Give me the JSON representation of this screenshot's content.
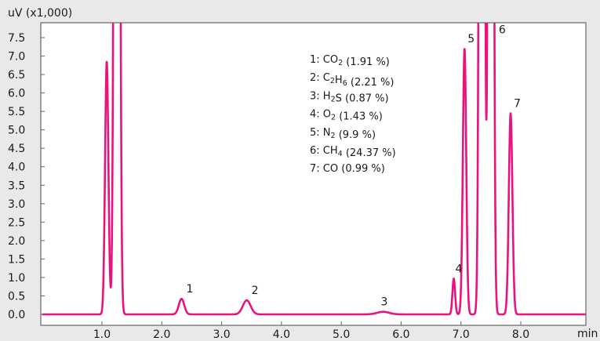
{
  "chart_data": {
    "type": "line",
    "title": "",
    "ylabel": "uV (x1,000)",
    "xlabel": "min",
    "xlim": [
      0.0,
      9.3
    ],
    "ylim": [
      -0.15,
      8.2
    ],
    "x_ticks": [
      1.0,
      2.0,
      3.0,
      4.0,
      5.0,
      6.0,
      7.0,
      8.0
    ],
    "x_tick_labels": [
      "1.0",
      "2.0",
      "3.0",
      "4.0",
      "5.0",
      "6.0",
      "7.0",
      "8.0"
    ],
    "y_ticks": [
      0.0,
      0.5,
      1.0,
      1.5,
      2.0,
      2.5,
      3.0,
      3.5,
      4.0,
      4.5,
      5.0,
      5.5,
      6.0,
      6.5,
      7.0,
      7.5
    ],
    "y_tick_labels": [
      "0.0",
      "0.5",
      "1.0",
      "1.5",
      "2.0",
      "2.5",
      "3.0",
      "3.5",
      "4.0",
      "4.5",
      "5.0",
      "5.5",
      "6.0",
      "6.5",
      "7.0",
      "7.5"
    ],
    "grid": false,
    "line_color": "#e8137f",
    "baseline": 0.0,
    "series": [
      {
        "peaks": [
          {
            "x": 1.08,
            "height": 6.85,
            "width": 0.028,
            "label": ""
          },
          {
            "x": 1.25,
            "height": 60.0,
            "width": 0.032,
            "label": ""
          },
          {
            "x": 2.33,
            "height": 0.42,
            "width": 0.045,
            "label": "1"
          },
          {
            "x": 3.42,
            "height": 0.38,
            "width": 0.065,
            "label": "2"
          },
          {
            "x": 5.7,
            "height": 0.07,
            "width": 0.1,
            "label": "3"
          },
          {
            "x": 6.88,
            "height": 0.97,
            "width": 0.022,
            "label": "4"
          },
          {
            "x": 7.06,
            "height": 7.2,
            "width": 0.028,
            "label": "5"
          },
          {
            "x": 7.35,
            "height": 60.0,
            "width": 0.03,
            "label": ""
          },
          {
            "x": 7.5,
            "height": 60.0,
            "width": 0.03,
            "label": "6"
          },
          {
            "x": 7.83,
            "height": 5.45,
            "width": 0.03,
            "label": "7"
          }
        ]
      }
    ],
    "annotations": [
      "1: CO2 (1.91 %)",
      "2: C2H6 (2.21 %)",
      "3: H2S (0.87 %)",
      "4: O2 (1.43 %)",
      "5: N2 (9.9 %)",
      "6: CH4 (24.37 %)",
      "7: CO (0.99 %)"
    ]
  }
}
